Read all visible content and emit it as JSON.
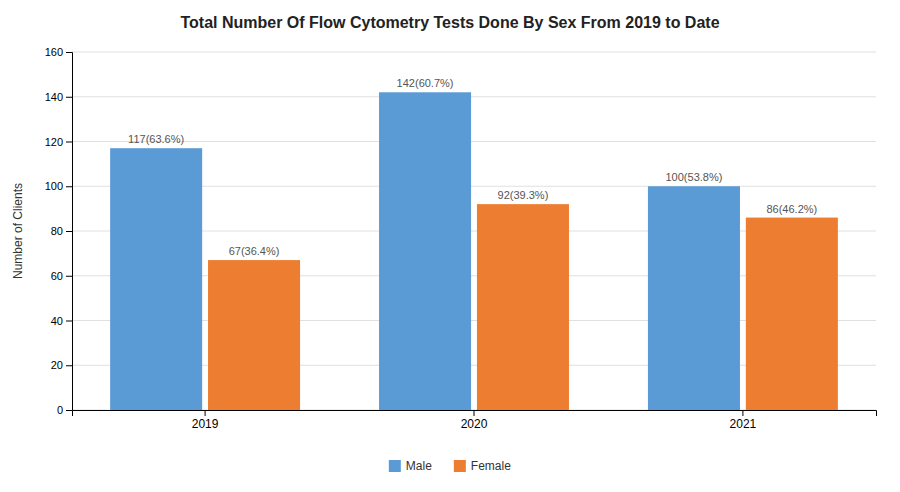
{
  "chart_data": {
    "type": "bar",
    "title": "Total Number Of Flow Cytometry Tests Done By Sex From 2019 to Date",
    "ylabel": "Number of Clients",
    "categories": [
      "2019",
      "2020",
      "2021"
    ],
    "series": [
      {
        "name": "Male",
        "color": "#5b9bd5",
        "values": [
          117,
          142,
          100
        ],
        "value_labels": [
          "117(63.6%)",
          "142(60.7%)",
          "100(53.8%)"
        ]
      },
      {
        "name": "Female",
        "color": "#ed7d31",
        "values": [
          67,
          92,
          86
        ],
        "value_labels": [
          "67(36.4%)",
          "92(39.3%)",
          "86(46.2%)"
        ]
      }
    ],
    "ylim": [
      0,
      160
    ],
    "yticks": [
      0,
      20,
      40,
      60,
      80,
      100,
      120,
      140,
      160
    ],
    "grid": true,
    "data_labels": true,
    "legend": "bottom"
  }
}
